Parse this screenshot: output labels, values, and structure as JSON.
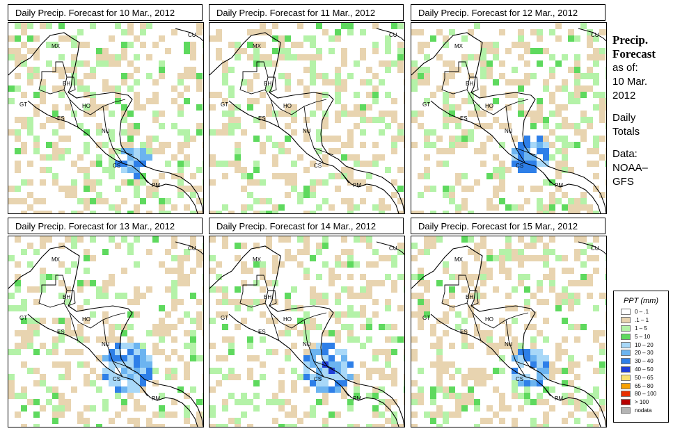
{
  "panels": [
    {
      "title": "Daily Precip. Forecast for  10 Mar., 2012",
      "seed": 11,
      "heavy": 1
    },
    {
      "title": "Daily Precip. Forecast for  11 Mar., 2012",
      "seed": 23,
      "heavy": 0
    },
    {
      "title": "Daily Precip. Forecast for  12 Mar., 2012",
      "seed": 37,
      "heavy": 2
    },
    {
      "title": "Daily Precip. Forecast for  13 Mar., 2012",
      "seed": 41,
      "heavy": 3
    },
    {
      "title": "Daily Precip. Forecast for  14 Mar., 2012",
      "seed": 53,
      "heavy": 3
    },
    {
      "title": "Daily Precip. Forecast for  15 Mar., 2012",
      "seed": 67,
      "heavy": 2
    }
  ],
  "country_labels": [
    "MX",
    "BH",
    "GT",
    "HO",
    "ES",
    "NU",
    "CS",
    "PM",
    "CU"
  ],
  "sidebar": {
    "title_line1": "Precip.",
    "title_line2": "Forecast",
    "asof": "as of:",
    "date_line1": "10 Mar.",
    "date_line2": "2012",
    "totals_line1": "Daily",
    "totals_line2": "Totals",
    "data_line1": "Data:",
    "data_line2": "NOAA–",
    "data_line3": "GFS"
  },
  "legend": {
    "title": "PPT (mm)",
    "items": [
      {
        "label": "0 – .1",
        "color": "#ffffff"
      },
      {
        "label": ".1 – 1",
        "color": "#e8d4b0"
      },
      {
        "label": "1 – 5",
        "color": "#b4f2a8"
      },
      {
        "label": "5 – 10",
        "color": "#5ed95e"
      },
      {
        "label": "10 – 20",
        "color": "#a8d8f8"
      },
      {
        "label": "20 – 30",
        "color": "#6cb4f0"
      },
      {
        "label": "30 – 40",
        "color": "#2e7fe8"
      },
      {
        "label": "40 – 50",
        "color": "#1f3fd8"
      },
      {
        "label": "50 – 65",
        "color": "#f8e070"
      },
      {
        "label": "65 – 80",
        "color": "#f8a000"
      },
      {
        "label": "80 – 100",
        "color": "#e83000"
      },
      {
        "label": "> 100",
        "color": "#b80000"
      },
      {
        "label": "nodata",
        "color": "#b4b4b4"
      }
    ]
  }
}
